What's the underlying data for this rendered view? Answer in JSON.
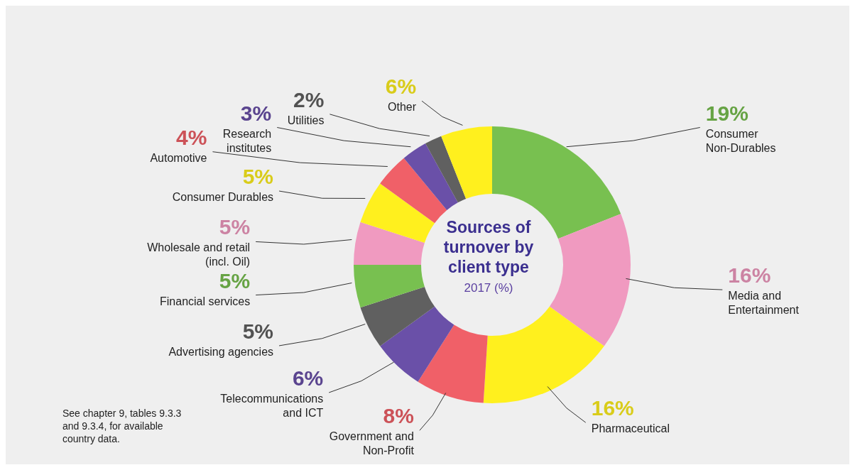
{
  "chart_data": {
    "type": "donut",
    "title": "Sources of turnover by client type",
    "subtitle": "2017 (%)",
    "categories": [
      "Consumer Non-Durables",
      "Media and Entertainment",
      "Pharmaceutical",
      "Government and Non-Profit",
      "Telecommunications and ICT",
      "Advertising agencies",
      "Financial services",
      "Wholesale and retail (incl. Oil)",
      "Consumer Durables",
      "Automotive",
      "Research institutes",
      "Utilities",
      "Other"
    ],
    "values": [
      19,
      16,
      16,
      8,
      6,
      5,
      5,
      5,
      5,
      4,
      3,
      2,
      6
    ],
    "value_labels": [
      "19%",
      "16%",
      "16%",
      "8%",
      "6%",
      "5%",
      "5%",
      "5%",
      "5%",
      "4%",
      "3%",
      "2%",
      "6%"
    ],
    "colors": [
      "#78c050",
      "#f09ac0",
      "#fff01e",
      "#f06068",
      "#6a50a8",
      "#606060",
      "#78c050",
      "#f09ac0",
      "#fff01e",
      "#f06068",
      "#6a50a8",
      "#606060",
      "#fff01e"
    ],
    "annotations": [
      "See chapter 9, tables 9.3.3 and 9.3.4, for available country data."
    ]
  }
}
